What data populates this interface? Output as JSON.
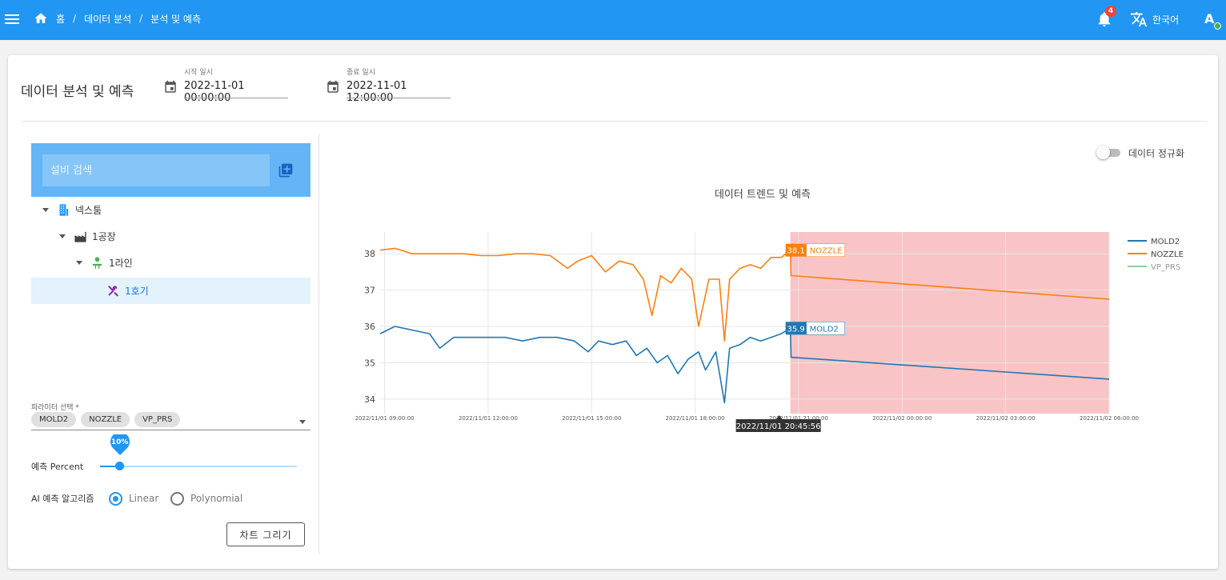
{
  "header": {
    "breadcrumb": [
      "홈",
      "데이터 분석",
      "분석 및 예측"
    ],
    "notification_count": "4",
    "language": "한국어",
    "avatar_initial": "A"
  },
  "page": {
    "title": "데이터 분석 및 예측",
    "start_label": "시작 일시",
    "start_value": "2022-11-01 00:00:00",
    "end_label": "종료 일시",
    "end_value": "2022-11-01 12:00:00"
  },
  "sidebar": {
    "search_placeholder": "설비 검색",
    "tree": [
      {
        "label": "넥스툼",
        "icon": "building-icon"
      },
      {
        "label": "1공장",
        "icon": "factory-icon"
      },
      {
        "label": "1라인",
        "icon": "line-icon"
      },
      {
        "label": "1호기",
        "icon": "tools-icon",
        "selected": true
      }
    ],
    "param_label": "파라미터 선택 *",
    "params": [
      "MOLD2",
      "NOZZLE",
      "VP_PRS"
    ],
    "percent_label": "예측 Percent",
    "percent_value": 10,
    "percent_text": "10%",
    "algo_label": "AI 예측 알고리즘",
    "algo_options": [
      "Linear",
      "Polynomial"
    ],
    "algo_selected": "Linear",
    "draw_button": "차트 그리기"
  },
  "chart_panel": {
    "normalize_label": "데이터 정규화",
    "normalize_on": false
  },
  "chart_data": {
    "type": "line",
    "title": "데이터 트렌드 및 예측",
    "x_ticks": [
      "2022/11/01 09:00:00",
      "2022/11/01 12:00:00",
      "2022/11/01 15:00:00",
      "2022/11/01 18:00:00",
      "2022/11/01 21:00:00",
      "2022/11/02 00:00:00",
      "2022/11/02 03:00:00",
      "2022/11/02 06:00:00"
    ],
    "y_ticks": [
      34,
      35,
      36,
      37,
      38
    ],
    "ylim": [
      33.6,
      38.6
    ],
    "legend": "right",
    "hover_x_label": "2022/11/01 20:45:56",
    "prediction_region_color": "#f8c4c6",
    "series": [
      {
        "name": "MOLD2",
        "color": "#1f77b4",
        "hover_value": "35.9",
        "points": [
          [
            8.87,
            35.8
          ],
          [
            9.3,
            36.0
          ],
          [
            9.8,
            35.9
          ],
          [
            10.3,
            35.8
          ],
          [
            10.6,
            35.4
          ],
          [
            11.0,
            35.7
          ],
          [
            11.5,
            35.7
          ],
          [
            12.0,
            35.7
          ],
          [
            12.5,
            35.7
          ],
          [
            13.0,
            35.6
          ],
          [
            13.5,
            35.7
          ],
          [
            14.0,
            35.7
          ],
          [
            14.5,
            35.6
          ],
          [
            14.9,
            35.3
          ],
          [
            15.2,
            35.6
          ],
          [
            15.6,
            35.5
          ],
          [
            16.0,
            35.6
          ],
          [
            16.3,
            35.2
          ],
          [
            16.6,
            35.4
          ],
          [
            16.9,
            35.0
          ],
          [
            17.2,
            35.2
          ],
          [
            17.5,
            34.7
          ],
          [
            17.8,
            35.1
          ],
          [
            18.1,
            35.3
          ],
          [
            18.3,
            34.8
          ],
          [
            18.6,
            35.3
          ],
          [
            18.85,
            33.9
          ],
          [
            19.0,
            35.4
          ],
          [
            19.3,
            35.5
          ],
          [
            19.6,
            35.7
          ],
          [
            19.9,
            35.6
          ],
          [
            20.2,
            35.7
          ],
          [
            20.5,
            35.8
          ],
          [
            20.76,
            35.95
          ],
          [
            20.78,
            35.15
          ],
          [
            30.0,
            34.55
          ]
        ]
      },
      {
        "name": "NOZZLE",
        "color": "#ff7f0e",
        "hover_value": "38.1",
        "points": [
          [
            8.87,
            38.1
          ],
          [
            9.3,
            38.15
          ],
          [
            9.8,
            38.0
          ],
          [
            10.3,
            38.0
          ],
          [
            10.8,
            38.0
          ],
          [
            11.3,
            38.0
          ],
          [
            11.8,
            37.95
          ],
          [
            12.3,
            37.95
          ],
          [
            12.8,
            38.0
          ],
          [
            13.3,
            38.0
          ],
          [
            13.8,
            37.95
          ],
          [
            14.3,
            37.6
          ],
          [
            14.6,
            37.8
          ],
          [
            15.0,
            37.95
          ],
          [
            15.4,
            37.5
          ],
          [
            15.8,
            37.8
          ],
          [
            16.2,
            37.7
          ],
          [
            16.5,
            37.3
          ],
          [
            16.75,
            36.3
          ],
          [
            17.0,
            37.4
          ],
          [
            17.3,
            37.2
          ],
          [
            17.6,
            37.6
          ],
          [
            17.9,
            37.3
          ],
          [
            18.1,
            36.0
          ],
          [
            18.4,
            37.3
          ],
          [
            18.7,
            37.3
          ],
          [
            18.85,
            35.6
          ],
          [
            19.0,
            37.3
          ],
          [
            19.3,
            37.6
          ],
          [
            19.6,
            37.7
          ],
          [
            19.9,
            37.6
          ],
          [
            20.2,
            37.9
          ],
          [
            20.5,
            37.9
          ],
          [
            20.76,
            38.1
          ],
          [
            20.78,
            37.4
          ],
          [
            30.0,
            36.75
          ]
        ]
      },
      {
        "name": "VP_PRS",
        "color": "#8fd18f",
        "points": []
      }
    ]
  }
}
